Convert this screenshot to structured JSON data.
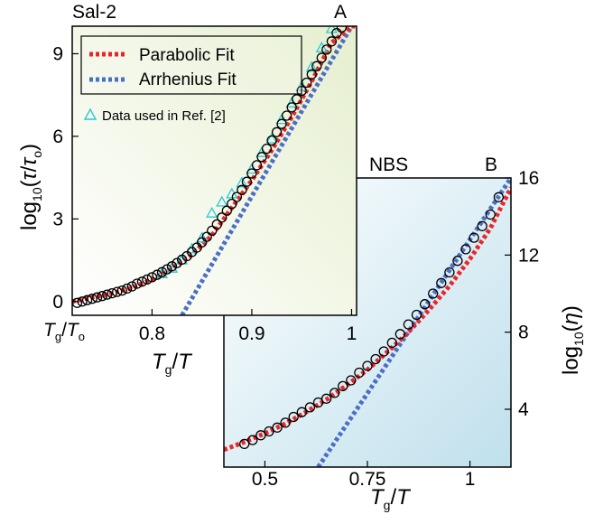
{
  "chart_data": [
    {
      "id": "A",
      "type": "scatter",
      "title": "Sal-2",
      "panel_label": "A",
      "xlabel": "T_g/T",
      "ylabel": "log10(τ/τo)",
      "xlim": [
        0.72,
        1.005
      ],
      "ylim": [
        -0.5,
        10.0
      ],
      "x_tick_labels": [
        "Tg/To",
        "0.8",
        "0.9",
        "1"
      ],
      "y_ticks": [
        0,
        3,
        6,
        9
      ],
      "grid": false,
      "legend_position": "top-left",
      "background": [
        "#ffffff",
        "#e6efcf"
      ],
      "series": [
        {
          "name": "Parabolic Fit",
          "kind": "dotted-line",
          "color": "#e8262a",
          "x": [
            0.72,
            0.74,
            0.76,
            0.78,
            0.8,
            0.82,
            0.84,
            0.86,
            0.88,
            0.9,
            0.92,
            0.94,
            0.96,
            0.98,
            1.0,
            1.005
          ],
          "y": [
            0.0,
            0.15,
            0.3,
            0.5,
            0.8,
            1.2,
            1.7,
            2.4,
            3.4,
            4.4,
            5.5,
            6.7,
            8.0,
            9.4,
            10.0,
            10.0
          ]
        },
        {
          "name": "Arrhenius Fit",
          "kind": "dotted-line",
          "color": "#4a6fc4",
          "x": [
            0.83,
            1.0
          ],
          "y": [
            -0.5,
            10.0
          ]
        },
        {
          "name": "Data used in Ref. [2]",
          "kind": "triangle",
          "color": "#27c9d8",
          "x": [
            0.81,
            0.82,
            0.83,
            0.84,
            0.85,
            0.86,
            0.87,
            0.88,
            0.89,
            0.9,
            0.91,
            0.92,
            0.93,
            0.94,
            0.95,
            0.96,
            0.97,
            0.98
          ],
          "y": [
            1.0,
            1.2,
            1.5,
            1.9,
            2.3,
            3.2,
            3.6,
            3.9,
            4.3,
            4.8,
            5.4,
            5.9,
            6.6,
            7.2,
            7.8,
            8.5,
            9.2,
            9.9
          ]
        },
        {
          "name": "data",
          "kind": "circle",
          "color": "#000000",
          "x": [
            0.725,
            0.73,
            0.735,
            0.74,
            0.745,
            0.75,
            0.755,
            0.76,
            0.765,
            0.77,
            0.775,
            0.78,
            0.785,
            0.79,
            0.795,
            0.8,
            0.805,
            0.81,
            0.815,
            0.82,
            0.825,
            0.83,
            0.835,
            0.84,
            0.845,
            0.85,
            0.855,
            0.86,
            0.865,
            0.87,
            0.875,
            0.88,
            0.885,
            0.89,
            0.895,
            0.9,
            0.905,
            0.91,
            0.915,
            0.92,
            0.925,
            0.93,
            0.935,
            0.94,
            0.945,
            0.95,
            0.955,
            0.96,
            0.965,
            0.97,
            0.975,
            0.98,
            0.985,
            0.99
          ],
          "y": [
            -0.05,
            0.0,
            0.05,
            0.1,
            0.15,
            0.2,
            0.25,
            0.3,
            0.35,
            0.4,
            0.47,
            0.55,
            0.65,
            0.72,
            0.8,
            0.88,
            0.97,
            1.07,
            1.17,
            1.28,
            1.4,
            1.52,
            1.65,
            1.8,
            1.96,
            2.15,
            2.35,
            2.57,
            2.8,
            3.05,
            3.3,
            3.55,
            3.8,
            4.05,
            4.35,
            4.65,
            4.95,
            5.25,
            5.55,
            5.85,
            6.15,
            6.45,
            6.75,
            7.05,
            7.35,
            7.65,
            7.95,
            8.25,
            8.55,
            8.85,
            9.15,
            9.45,
            9.75,
            9.95
          ]
        }
      ]
    },
    {
      "id": "B",
      "type": "scatter",
      "title": "NBS",
      "panel_label": "B",
      "xlabel": "T_g/T",
      "ylabel": "log10(η)",
      "xlim": [
        0.4,
        1.1
      ],
      "ylim": [
        1.0,
        16.0
      ],
      "x_ticks": [
        0.5,
        0.75,
        1
      ],
      "x_tick_labels": [
        "0.5",
        "0.75",
        "1"
      ],
      "y_ticks": [
        4,
        8,
        12,
        16
      ],
      "grid": false,
      "background": [
        "#ffffff",
        "#bfe0ec"
      ],
      "series": [
        {
          "name": "Parabolic Fit",
          "kind": "dotted-line",
          "color": "#e8262a",
          "x": [
            0.4,
            0.45,
            0.5,
            0.55,
            0.6,
            0.65,
            0.7,
            0.75,
            0.8,
            0.85,
            0.9,
            0.95,
            1.0,
            1.05,
            1.1
          ],
          "y": [
            1.9,
            2.3,
            2.75,
            3.25,
            3.85,
            4.5,
            5.25,
            6.05,
            7.0,
            8.0,
            9.15,
            10.4,
            11.8,
            13.4,
            15.5
          ]
        },
        {
          "name": "Arrhenius Fit",
          "kind": "dotted-line",
          "color": "#4a6fc4",
          "x": [
            0.63,
            1.1
          ],
          "y": [
            1.0,
            16.0
          ]
        },
        {
          "name": "data",
          "kind": "circle",
          "color": "#000000",
          "x": [
            0.45,
            0.47,
            0.49,
            0.51,
            0.53,
            0.55,
            0.57,
            0.59,
            0.61,
            0.63,
            0.65,
            0.67,
            0.69,
            0.71,
            0.73,
            0.75,
            0.77,
            0.79,
            0.81,
            0.83,
            0.85,
            0.87,
            0.89,
            0.91,
            0.93,
            0.95,
            0.97,
            0.99,
            1.01,
            1.03,
            1.05,
            1.07
          ],
          "y": [
            2.2,
            2.4,
            2.65,
            2.85,
            3.05,
            3.3,
            3.6,
            3.85,
            4.1,
            4.35,
            4.55,
            4.85,
            5.2,
            5.5,
            5.9,
            6.25,
            6.6,
            7.0,
            7.45,
            7.9,
            8.4,
            8.9,
            9.45,
            10.0,
            10.55,
            11.1,
            11.7,
            12.3,
            12.9,
            13.5,
            14.1,
            15.0
          ]
        }
      ]
    }
  ],
  "legend": {
    "items": [
      {
        "label": "Parabolic Fit",
        "color": "#e8262a"
      },
      {
        "label": "Arrhenius Fit",
        "color": "#4a6fc4"
      }
    ],
    "extra": {
      "label": "Data used in Ref. [2]",
      "color": "#27c9d8"
    }
  }
}
